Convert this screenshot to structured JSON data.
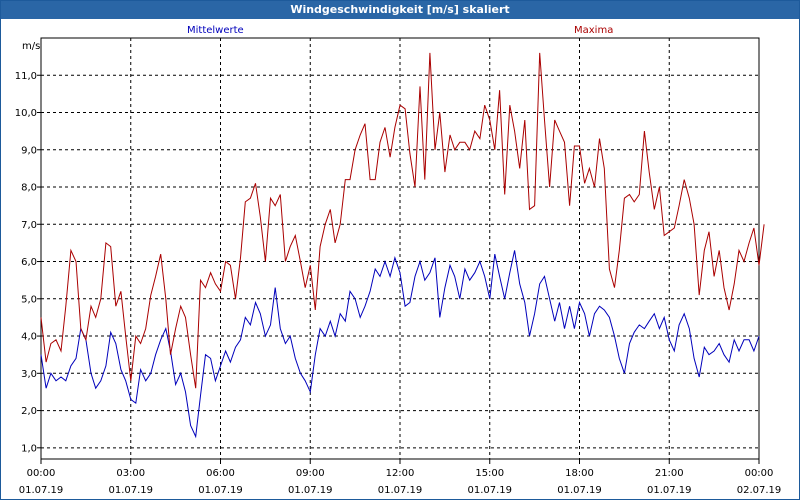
{
  "window": {
    "title": "Windgeschwindigkeit [m/s] skaliert"
  },
  "chart_data": {
    "type": "line",
    "title": "Windgeschwindigkeit [m/s] skaliert",
    "ylabel": "m/s",
    "xlabel": "",
    "ylim": [
      0.7,
      12.0
    ],
    "yticks": [
      "1,0",
      "2,0",
      "3,0",
      "4,0",
      "5,0",
      "6,0",
      "7,0",
      "8,0",
      "9,0",
      "10,0",
      "11,0"
    ],
    "xlim_hours": [
      0,
      24
    ],
    "xticks": [
      {
        "time": "00:00",
        "date": "01.07.19"
      },
      {
        "time": "03:00",
        "date": "01.07.19"
      },
      {
        "time": "06:00",
        "date": "01.07.19"
      },
      {
        "time": "09:00",
        "date": "01.07.19"
      },
      {
        "time": "12:00",
        "date": "01.07.19"
      },
      {
        "time": "15:00",
        "date": "01.07.19"
      },
      {
        "time": "18:00",
        "date": "01.07.19"
      },
      {
        "time": "21:00",
        "date": "01.07.19"
      },
      {
        "time": "00:00",
        "date": "02.07.19"
      }
    ],
    "grid": true,
    "legend_placement": "top",
    "series": [
      {
        "name": "Mittelwerte",
        "color": "#0000bb",
        "points": [
          [
            0,
            3.5
          ],
          [
            0.17,
            2.6
          ],
          [
            0.33,
            3.0
          ],
          [
            0.5,
            2.8
          ],
          [
            0.67,
            2.9
          ],
          [
            0.83,
            2.8
          ],
          [
            1,
            3.2
          ],
          [
            1.17,
            3.4
          ],
          [
            1.33,
            4.2
          ],
          [
            1.5,
            3.9
          ],
          [
            1.67,
            3.0
          ],
          [
            1.83,
            2.6
          ],
          [
            2,
            2.8
          ],
          [
            2.17,
            3.2
          ],
          [
            2.33,
            4.1
          ],
          [
            2.5,
            3.8
          ],
          [
            2.67,
            3.1
          ],
          [
            2.83,
            2.8
          ],
          [
            3,
            2.3
          ],
          [
            3.17,
            2.2
          ],
          [
            3.33,
            3.1
          ],
          [
            3.5,
            2.8
          ],
          [
            3.67,
            3.0
          ],
          [
            3.83,
            3.5
          ],
          [
            4,
            3.9
          ],
          [
            4.17,
            4.2
          ],
          [
            4.33,
            3.6
          ],
          [
            4.5,
            2.7
          ],
          [
            4.67,
            3.0
          ],
          [
            4.83,
            2.5
          ],
          [
            5,
            1.6
          ],
          [
            5.17,
            1.3
          ],
          [
            5.33,
            2.4
          ],
          [
            5.5,
            3.5
          ],
          [
            5.67,
            3.4
          ],
          [
            5.83,
            2.8
          ],
          [
            6,
            3.2
          ],
          [
            6.17,
            3.6
          ],
          [
            6.33,
            3.3
          ],
          [
            6.5,
            3.7
          ],
          [
            6.67,
            3.9
          ],
          [
            6.83,
            4.5
          ],
          [
            7,
            4.3
          ],
          [
            7.17,
            4.9
          ],
          [
            7.33,
            4.6
          ],
          [
            7.5,
            4.0
          ],
          [
            7.67,
            4.3
          ],
          [
            7.83,
            5.3
          ],
          [
            8,
            4.2
          ],
          [
            8.17,
            3.8
          ],
          [
            8.33,
            4.0
          ],
          [
            8.5,
            3.4
          ],
          [
            8.67,
            3.0
          ],
          [
            8.83,
            2.8
          ],
          [
            9,
            2.5
          ],
          [
            9.17,
            3.5
          ],
          [
            9.33,
            4.2
          ],
          [
            9.5,
            4.0
          ],
          [
            9.67,
            4.4
          ],
          [
            9.83,
            4.0
          ],
          [
            10,
            4.6
          ],
          [
            10.17,
            4.4
          ],
          [
            10.33,
            5.2
          ],
          [
            10.5,
            5.0
          ],
          [
            10.67,
            4.5
          ],
          [
            10.83,
            4.8
          ],
          [
            11,
            5.2
          ],
          [
            11.17,
            5.8
          ],
          [
            11.33,
            5.6
          ],
          [
            11.5,
            6.0
          ],
          [
            11.67,
            5.6
          ],
          [
            11.83,
            6.1
          ],
          [
            12,
            5.7
          ],
          [
            12.17,
            4.8
          ],
          [
            12.33,
            4.9
          ],
          [
            12.5,
            5.6
          ],
          [
            12.67,
            6.0
          ],
          [
            12.83,
            5.5
          ],
          [
            13,
            5.7
          ],
          [
            13.17,
            6.1
          ],
          [
            13.33,
            4.5
          ],
          [
            13.5,
            5.3
          ],
          [
            13.67,
            5.9
          ],
          [
            13.83,
            5.6
          ],
          [
            14,
            5.0
          ],
          [
            14.17,
            5.8
          ],
          [
            14.33,
            5.5
          ],
          [
            14.5,
            5.7
          ],
          [
            14.67,
            6.0
          ],
          [
            14.83,
            5.6
          ],
          [
            15,
            5.0
          ],
          [
            15.17,
            6.2
          ],
          [
            15.33,
            5.6
          ],
          [
            15.5,
            5.0
          ],
          [
            15.67,
            5.7
          ],
          [
            15.83,
            6.3
          ],
          [
            16,
            5.4
          ],
          [
            16.17,
            4.9
          ],
          [
            16.33,
            4.0
          ],
          [
            16.5,
            4.6
          ],
          [
            16.67,
            5.4
          ],
          [
            16.83,
            5.6
          ],
          [
            17,
            5.0
          ],
          [
            17.17,
            4.4
          ],
          [
            17.33,
            4.9
          ],
          [
            17.5,
            4.2
          ],
          [
            17.67,
            4.8
          ],
          [
            17.83,
            4.2
          ],
          [
            18,
            4.9
          ],
          [
            18.17,
            4.6
          ],
          [
            18.33,
            4.0
          ],
          [
            18.5,
            4.6
          ],
          [
            18.67,
            4.8
          ],
          [
            18.83,
            4.7
          ],
          [
            19,
            4.5
          ],
          [
            19.17,
            4.0
          ],
          [
            19.33,
            3.4
          ],
          [
            19.5,
            3.0
          ],
          [
            19.67,
            3.8
          ],
          [
            19.83,
            4.1
          ],
          [
            20,
            4.3
          ],
          [
            20.17,
            4.2
          ],
          [
            20.33,
            4.4
          ],
          [
            20.5,
            4.6
          ],
          [
            20.67,
            4.2
          ],
          [
            20.83,
            4.5
          ],
          [
            21,
            3.9
          ],
          [
            21.17,
            3.6
          ],
          [
            21.33,
            4.3
          ],
          [
            21.5,
            4.6
          ],
          [
            21.67,
            4.2
          ],
          [
            21.83,
            3.4
          ],
          [
            22,
            2.9
          ],
          [
            22.17,
            3.7
          ],
          [
            22.33,
            3.5
          ],
          [
            22.5,
            3.6
          ],
          [
            22.67,
            3.8
          ],
          [
            22.83,
            3.5
          ],
          [
            23,
            3.3
          ],
          [
            23.17,
            3.9
          ],
          [
            23.33,
            3.6
          ],
          [
            23.5,
            3.9
          ],
          [
            23.67,
            3.9
          ],
          [
            23.83,
            3.6
          ],
          [
            24,
            4.0
          ]
        ]
      },
      {
        "name": "Maxima",
        "color": "#aa0000",
        "points": [
          [
            0,
            4.5
          ],
          [
            0.17,
            3.3
          ],
          [
            0.33,
            3.8
          ],
          [
            0.5,
            3.9
          ],
          [
            0.67,
            3.6
          ],
          [
            0.83,
            4.8
          ],
          [
            1,
            6.3
          ],
          [
            1.17,
            6.0
          ],
          [
            1.33,
            4.2
          ],
          [
            1.5,
            3.9
          ],
          [
            1.67,
            4.8
          ],
          [
            1.83,
            4.5
          ],
          [
            2,
            5.0
          ],
          [
            2.17,
            6.5
          ],
          [
            2.33,
            6.4
          ],
          [
            2.5,
            4.8
          ],
          [
            2.67,
            5.2
          ],
          [
            2.83,
            4.0
          ],
          [
            3,
            2.8
          ],
          [
            3.17,
            4.0
          ],
          [
            3.33,
            3.8
          ],
          [
            3.5,
            4.2
          ],
          [
            3.67,
            5.1
          ],
          [
            3.83,
            5.6
          ],
          [
            4,
            6.2
          ],
          [
            4.17,
            5.0
          ],
          [
            4.33,
            3.5
          ],
          [
            4.5,
            4.2
          ],
          [
            4.67,
            4.8
          ],
          [
            4.83,
            4.5
          ],
          [
            5,
            3.5
          ],
          [
            5.17,
            2.6
          ],
          [
            5.33,
            5.5
          ],
          [
            5.5,
            5.3
          ],
          [
            5.67,
            5.7
          ],
          [
            5.83,
            5.4
          ],
          [
            6,
            5.2
          ],
          [
            6.17,
            6.0
          ],
          [
            6.33,
            5.9
          ],
          [
            6.5,
            5.0
          ],
          [
            6.67,
            6.1
          ],
          [
            6.83,
            7.6
          ],
          [
            7,
            7.7
          ],
          [
            7.17,
            8.1
          ],
          [
            7.33,
            7.2
          ],
          [
            7.5,
            6.0
          ],
          [
            7.67,
            7.7
          ],
          [
            7.83,
            7.5
          ],
          [
            8,
            7.8
          ],
          [
            8.17,
            6.0
          ],
          [
            8.33,
            6.4
          ],
          [
            8.5,
            6.7
          ],
          [
            8.67,
            6.0
          ],
          [
            8.83,
            5.3
          ],
          [
            9,
            5.9
          ],
          [
            9.17,
            4.7
          ],
          [
            9.33,
            6.4
          ],
          [
            9.5,
            7.0
          ],
          [
            9.67,
            7.4
          ],
          [
            9.83,
            6.5
          ],
          [
            10,
            7.0
          ],
          [
            10.17,
            8.2
          ],
          [
            10.33,
            8.2
          ],
          [
            10.5,
            9.0
          ],
          [
            10.67,
            9.4
          ],
          [
            10.83,
            9.7
          ],
          [
            11,
            8.2
          ],
          [
            11.17,
            8.2
          ],
          [
            11.33,
            9.2
          ],
          [
            11.5,
            9.6
          ],
          [
            11.67,
            8.8
          ],
          [
            11.83,
            9.6
          ],
          [
            12,
            10.2
          ],
          [
            12.17,
            10.1
          ],
          [
            12.33,
            8.9
          ],
          [
            12.5,
            8.0
          ],
          [
            12.67,
            10.7
          ],
          [
            12.83,
            8.2
          ],
          [
            13,
            11.6
          ],
          [
            13.17,
            9.0
          ],
          [
            13.33,
            10.0
          ],
          [
            13.5,
            8.4
          ],
          [
            13.67,
            9.4
          ],
          [
            13.83,
            9.0
          ],
          [
            14,
            9.2
          ],
          [
            14.17,
            9.2
          ],
          [
            14.33,
            9.0
          ],
          [
            14.5,
            9.5
          ],
          [
            14.67,
            9.3
          ],
          [
            14.83,
            10.2
          ],
          [
            15,
            9.8
          ],
          [
            15.17,
            9.0
          ],
          [
            15.33,
            10.6
          ],
          [
            15.5,
            7.8
          ],
          [
            15.67,
            10.2
          ],
          [
            15.83,
            9.5
          ],
          [
            16,
            8.5
          ],
          [
            16.17,
            9.8
          ],
          [
            16.33,
            7.4
          ],
          [
            16.5,
            7.5
          ],
          [
            16.67,
            11.6
          ],
          [
            16.83,
            9.8
          ],
          [
            17,
            8.0
          ],
          [
            17.17,
            9.8
          ],
          [
            17.33,
            9.5
          ],
          [
            17.5,
            9.2
          ],
          [
            17.67,
            7.5
          ],
          [
            17.83,
            9.1
          ],
          [
            18,
            9.1
          ],
          [
            18.17,
            8.1
          ],
          [
            18.33,
            8.5
          ],
          [
            18.5,
            8.0
          ],
          [
            18.67,
            9.3
          ],
          [
            18.83,
            8.5
          ],
          [
            19,
            5.8
          ],
          [
            19.17,
            5.3
          ],
          [
            19.33,
            6.3
          ],
          [
            19.5,
            7.7
          ],
          [
            19.67,
            7.8
          ],
          [
            19.83,
            7.6
          ],
          [
            20,
            7.8
          ],
          [
            20.17,
            9.5
          ],
          [
            20.33,
            8.4
          ],
          [
            20.5,
            7.4
          ],
          [
            20.67,
            8.0
          ],
          [
            20.83,
            6.7
          ],
          [
            21,
            6.8
          ],
          [
            21.17,
            6.9
          ],
          [
            21.33,
            7.5
          ],
          [
            21.5,
            8.2
          ],
          [
            21.67,
            7.7
          ],
          [
            21.83,
            7.0
          ],
          [
            22,
            5.1
          ],
          [
            22.17,
            6.3
          ],
          [
            22.33,
            6.8
          ],
          [
            22.5,
            5.6
          ],
          [
            22.67,
            6.3
          ],
          [
            22.83,
            5.3
          ],
          [
            23,
            4.7
          ],
          [
            23.17,
            5.4
          ],
          [
            23.33,
            6.3
          ],
          [
            23.5,
            6.0
          ],
          [
            23.67,
            6.5
          ],
          [
            23.83,
            6.9
          ],
          [
            24,
            5.9
          ],
          [
            24.17,
            7.0
          ]
        ]
      }
    ]
  }
}
